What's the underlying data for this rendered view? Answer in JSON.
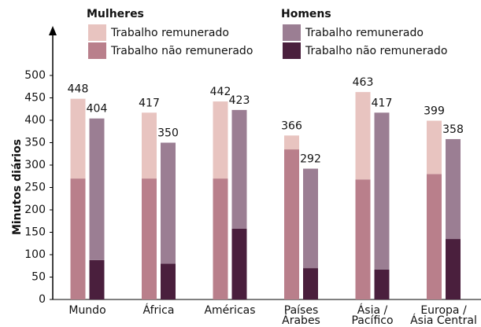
{
  "chart_data": {
    "type": "grouped-stacked-bar",
    "y_label": "Minutos diários",
    "categories": [
      [
        "Mundo"
      ],
      [
        "África"
      ],
      [
        "Américas"
      ],
      [
        "Países",
        "Árabes"
      ],
      [
        "Ásia /",
        "Pacífico"
      ],
      [
        "Europa /",
        "Ásia Central"
      ]
    ],
    "groups": [
      {
        "name": "Mulheres",
        "totals": [
          448,
          417,
          442,
          366,
          463,
          399
        ],
        "series": [
          {
            "name": "Trabalho não remunerado",
            "color": "#b97f8b",
            "values": [
              270,
              270,
              270,
              335,
              268,
              280
            ]
          },
          {
            "name": "Trabalho remunerado",
            "color": "#e8c4c0",
            "values": [
              178,
              147,
              172,
              31,
              195,
              119
            ]
          }
        ]
      },
      {
        "name": "Homens",
        "totals": [
          404,
          350,
          423,
          292,
          417,
          358
        ],
        "series": [
          {
            "name": "Trabalho não remunerado",
            "color": "#4a1f3d",
            "values": [
              88,
              80,
              158,
              70,
              67,
              135
            ]
          },
          {
            "name": "Trabalho remunerado",
            "color": "#9b7e93",
            "values": [
              316,
              270,
              265,
              222,
              350,
              223
            ]
          }
        ]
      }
    ],
    "ylim": [
      0,
      500
    ],
    "yticks": [
      0,
      50,
      100,
      150,
      200,
      250,
      300,
      350,
      400,
      450,
      500
    ]
  }
}
